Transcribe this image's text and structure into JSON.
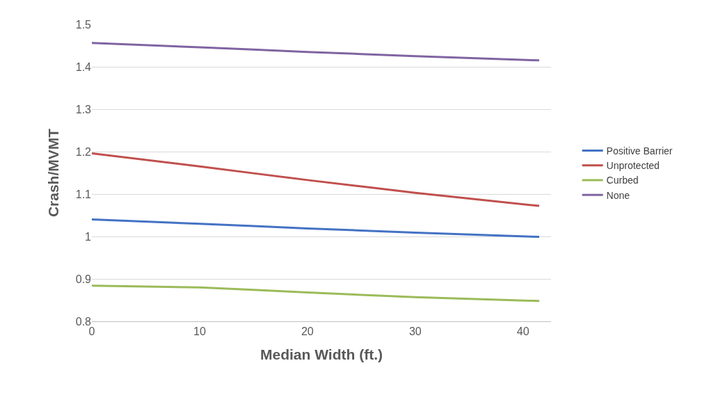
{
  "chart_data": {
    "type": "line",
    "xlabel": "Median Width (ft.)",
    "ylabel": "Crash/MVMT",
    "xlim": [
      0,
      42.6
    ],
    "xticks": [
      0,
      10,
      20,
      30,
      40
    ],
    "ylim": [
      0.8,
      1.5
    ],
    "yticks": [
      0.8,
      0.9,
      1,
      1.1,
      1.2,
      1.3,
      1.4,
      1.5
    ],
    "grid": "y",
    "legend": "right",
    "marker": "none",
    "line_style": "solid",
    "x": [
      0,
      10,
      20,
      30,
      41.5
    ],
    "series": [
      {
        "name": "Positive Barrier",
        "color": "#4472c4",
        "values": [
          1.04,
          1.03,
          1.019,
          1.009,
          0.999
        ]
      },
      {
        "name": "Unprotected",
        "color": "#c0504d",
        "values": [
          1.196,
          1.165,
          1.133,
          1.103,
          1.072
        ]
      },
      {
        "name": "Curbed",
        "color": "#9bbb59",
        "values": [
          0.884,
          0.88,
          0.868,
          0.857,
          0.848
        ]
      },
      {
        "name": "None",
        "color": "#8064a2",
        "values": [
          1.456,
          1.446,
          1.435,
          1.425,
          1.415
        ]
      }
    ]
  }
}
